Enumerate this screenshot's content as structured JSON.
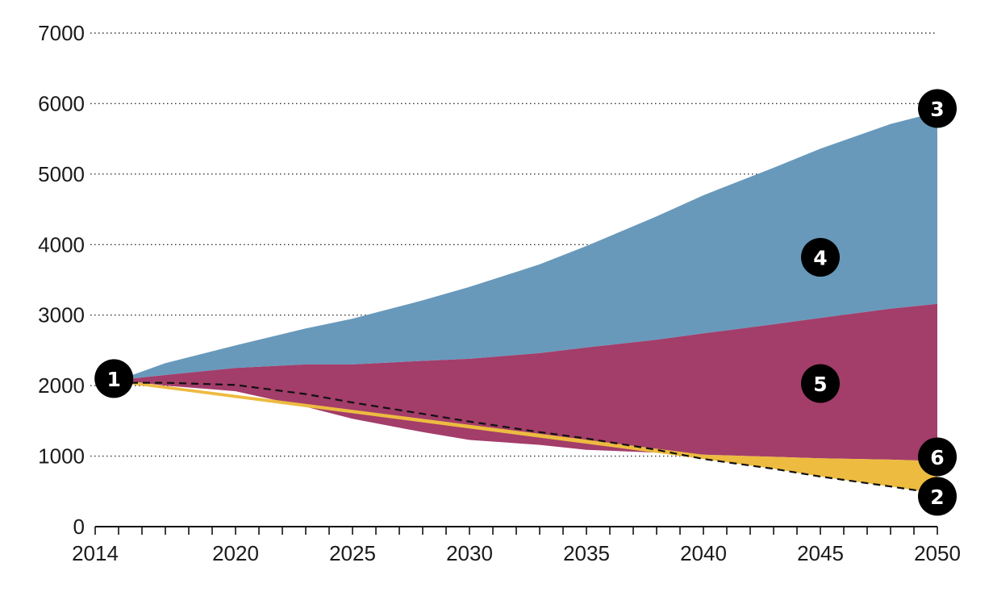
{
  "chart_data": {
    "type": "area",
    "title": "",
    "xlabel": "",
    "ylabel": "",
    "xlim": [
      2014,
      2050
    ],
    "ylim": [
      0,
      7000
    ],
    "grid": true,
    "x_tick_labels": [
      "2014",
      "2020",
      "2025",
      "2030",
      "2035",
      "2040",
      "2045",
      "2050"
    ],
    "y_tick_labels": [
      "0",
      "1000",
      "2000",
      "3000",
      "4000",
      "5000",
      "6000",
      "7000"
    ],
    "colors": {
      "top_band": "#6899bb",
      "middle_band": "#a33d6a",
      "bottom_band": "#ecbb40",
      "dashed_line": "#111111",
      "marker": "#000000",
      "marker_text": "#ffffff"
    },
    "x": [
      2015,
      2017,
      2020,
      2023,
      2025,
      2028,
      2030,
      2033,
      2035,
      2038,
      2040,
      2043,
      2045,
      2048,
      2050
    ],
    "series": [
      {
        "values": [
          2080,
          2320,
          2570,
          2810,
          2950,
          3210,
          3400,
          3720,
          3980,
          4400,
          4700,
          5090,
          5360,
          5710,
          5880
        ]
      },
      {
        "values": [
          2080,
          2150,
          2250,
          2300,
          2300,
          2350,
          2380,
          2460,
          2540,
          2650,
          2740,
          2870,
          2960,
          3090,
          3160
        ]
      },
      {
        "values": [
          2080,
          2000,
          1920,
          1700,
          1530,
          1340,
          1230,
          1160,
          1090,
          1050,
          1020,
          990,
          970,
          950,
          930
        ]
      },
      {
        "values": [
          2040,
          2040,
          2010,
          1880,
          1760,
          1600,
          1490,
          1340,
          1250,
          1090,
          960,
          820,
          710,
          570,
          470
        ]
      }
    ],
    "markers": [
      {
        "label": "1",
        "x": 2014.8,
        "y": 2100
      },
      {
        "label": "2",
        "x": 2050,
        "y": 430
      },
      {
        "label": "3",
        "x": 2050,
        "y": 5930
      },
      {
        "label": "4",
        "x": 2045,
        "y": 3820
      },
      {
        "label": "5",
        "x": 2045,
        "y": 2030
      },
      {
        "label": "6",
        "x": 2050,
        "y": 990
      }
    ]
  }
}
